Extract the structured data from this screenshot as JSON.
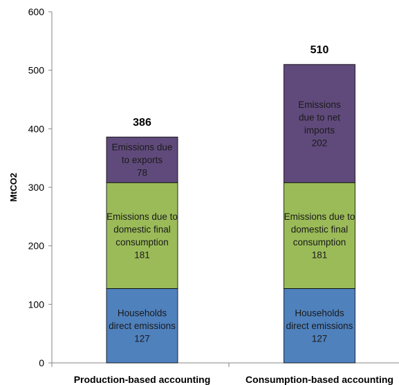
{
  "chart_data": {
    "type": "bar",
    "stacked": true,
    "ylabel": "MtCO2",
    "ylim": [
      0,
      600
    ],
    "yticks": [
      0,
      100,
      200,
      300,
      400,
      500,
      600
    ],
    "grid": false,
    "categories": [
      "Production-based accounting",
      "Consumption-based accounting"
    ],
    "totals": [
      386,
      510
    ],
    "segments": [
      [
        {
          "lines": [
            "Households",
            "direct emissions"
          ],
          "value": 127,
          "color": "#4f81bd"
        },
        {
          "lines": [
            "Emissions due to",
            "domestic final",
            "consumption"
          ],
          "value": 181,
          "color": "#9bbb59"
        },
        {
          "lines": [
            "Emissions due",
            "to exports"
          ],
          "value": 78,
          "color": "#604a7b"
        }
      ],
      [
        {
          "lines": [
            "Households",
            "direct emissions"
          ],
          "value": 127,
          "color": "#4f81bd"
        },
        {
          "lines": [
            "Emissions due to",
            "domestic final",
            "consumption"
          ],
          "value": 181,
          "color": "#9bbb59"
        },
        {
          "lines": [
            "Emissions",
            "due to  net",
            "imports"
          ],
          "value": 202,
          "color": "#604a7b"
        }
      ]
    ]
  }
}
